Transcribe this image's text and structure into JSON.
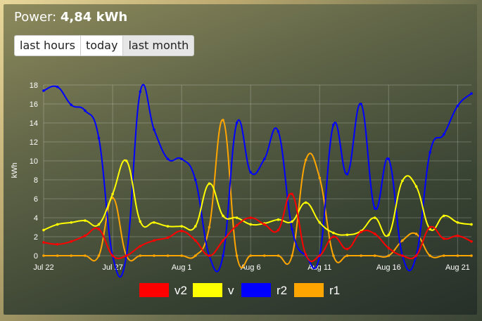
{
  "header": {
    "label": "Power:",
    "value": "4,84 kWh"
  },
  "range_buttons": [
    {
      "label": "last hours"
    },
    {
      "label": "today"
    },
    {
      "label": "last month"
    }
  ],
  "chart_data": {
    "type": "line",
    "ylabel": "kWh",
    "ylim": [
      0,
      18
    ],
    "yticks": [
      0,
      2,
      4,
      6,
      8,
      10,
      12,
      14,
      16,
      18
    ],
    "xticks": [
      {
        "day": 0,
        "label": "Jul 22"
      },
      {
        "day": 5,
        "label": "Jul 27"
      },
      {
        "day": 10,
        "label": "Aug 1"
      },
      {
        "day": 15,
        "label": "Aug 6"
      },
      {
        "day": 20,
        "label": "Aug 11"
      },
      {
        "day": 25,
        "label": "Aug 16"
      },
      {
        "day": 30,
        "label": "Aug 21"
      }
    ],
    "grid": true,
    "legend_position": "bottom",
    "series": [
      {
        "name": "v2",
        "color": "#ff0000",
        "values": [
          1.4,
          1.2,
          1.5,
          2.1,
          2.8,
          0,
          0,
          1.0,
          1.6,
          1.9,
          2.6,
          1.6,
          0,
          1.6,
          3.2,
          4.0,
          3.3,
          2.7,
          6.5,
          0.1,
          0,
          2.0,
          0.7,
          2.5,
          2.3,
          0.8,
          0,
          0,
          3.0,
          1.8,
          2.1,
          1.5
        ]
      },
      {
        "name": "v",
        "color": "#ffff00",
        "values": [
          2.7,
          3.3,
          3.5,
          3.7,
          3.3,
          6.5,
          10.0,
          3.6,
          3.5,
          3.1,
          3.1,
          3.1,
          7.6,
          4.2,
          4.0,
          3.3,
          3.4,
          3.8,
          3.6,
          5.6,
          3.5,
          2.4,
          2.2,
          2.6,
          4.0,
          2.2,
          7.9,
          7.3,
          2.8,
          4.2,
          3.5,
          3.3
        ]
      },
      {
        "name": "r2",
        "color": "#0000ff",
        "values": [
          17.4,
          17.8,
          15.9,
          15.3,
          12.4,
          0,
          0,
          17.3,
          13.3,
          10.2,
          10.2,
          8.0,
          0,
          0,
          14.0,
          8.8,
          10.2,
          13.1,
          2.8,
          0,
          0,
          13.8,
          8.6,
          16.0,
          5.0,
          10.2,
          0,
          0,
          10.9,
          12.8,
          15.8,
          17.1
        ]
      },
      {
        "name": "r1",
        "color": "#ffa500",
        "values": [
          0,
          0,
          0,
          0,
          0,
          6.1,
          0,
          0,
          0,
          0,
          0,
          0,
          3.0,
          14.3,
          0,
          0,
          0,
          0,
          0,
          10.1,
          8.2,
          0,
          0,
          0,
          0,
          0,
          1.6,
          2.3,
          0,
          0,
          0,
          0
        ]
      }
    ]
  }
}
